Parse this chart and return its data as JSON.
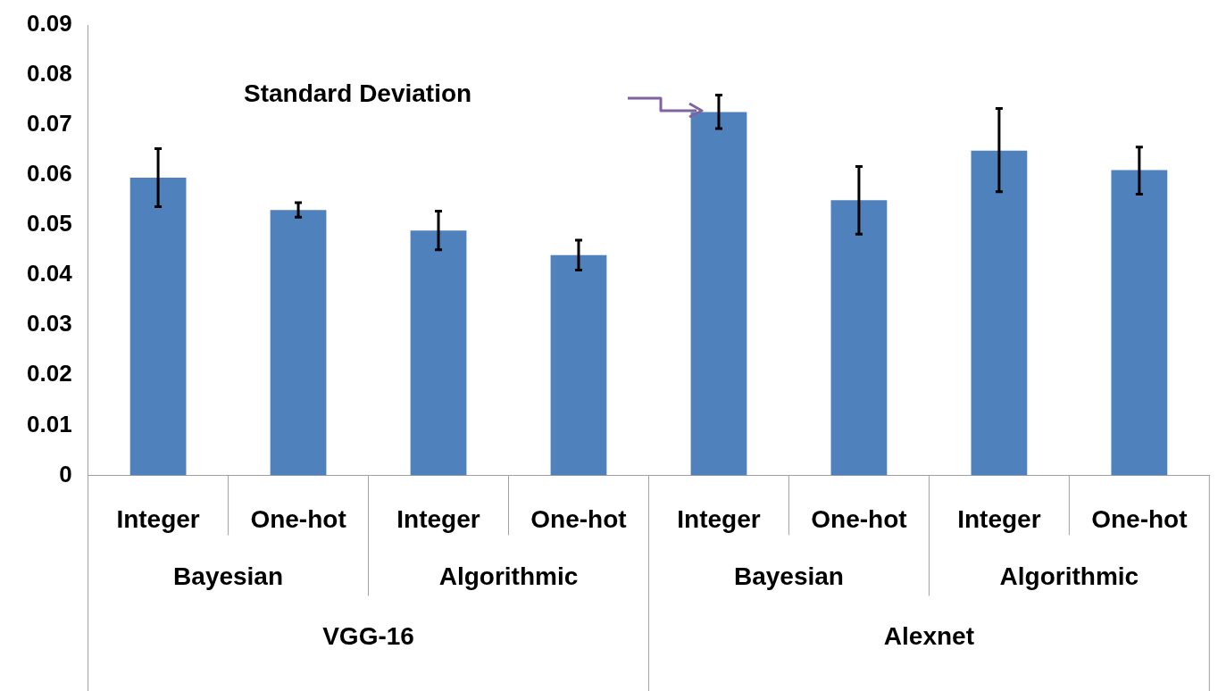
{
  "chart_data": {
    "type": "bar",
    "categories": [
      "Integer",
      "One-hot",
      "Integer",
      "One-hot",
      "Integer",
      "One-hot",
      "Integer",
      "One-hot"
    ],
    "values": [
      0.0595,
      0.053,
      0.0489,
      0.044,
      0.0726,
      0.055,
      0.0649,
      0.061
    ],
    "errors": [
      [
        0.0537,
        0.0653
      ],
      [
        0.0516,
        0.0545
      ],
      [
        0.0451,
        0.0528
      ],
      [
        0.041,
        0.047
      ],
      [
        0.0693,
        0.076
      ],
      [
        0.0482,
        0.0617
      ],
      [
        0.0567,
        0.0733
      ],
      [
        0.0562,
        0.0656
      ]
    ],
    "color": "#4f81bd",
    "ylim": [
      0,
      0.09
    ],
    "yticks": [
      0,
      0.01,
      0.02,
      0.03,
      0.04,
      0.05,
      0.06,
      0.07,
      0.08,
      0.09
    ],
    "grid": false,
    "legend": false,
    "annotations": [
      "Standard Deviation",
      "Bayesian",
      "Algorithmic",
      "Bayesian",
      "Algorithmic",
      "VGG-16",
      "Alexnet"
    ]
  }
}
